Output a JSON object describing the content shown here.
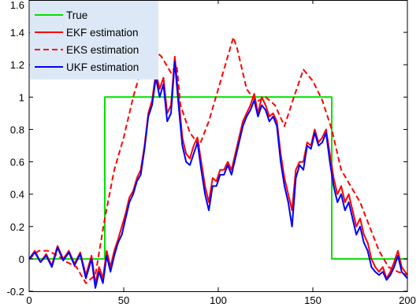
{
  "chart_data": {
    "type": "line",
    "title": "",
    "xlabel": "",
    "ylabel": "",
    "xlim": [
      0,
      200
    ],
    "ylim": [
      -0.2,
      1.6
    ],
    "x_ticks": [
      0,
      50,
      100,
      150,
      200
    ],
    "x_tick_labels": [
      "0",
      "50",
      "100",
      "150",
      "200"
    ],
    "y_ticks": [
      -0.2,
      0,
      0.2,
      0.4,
      0.6,
      0.8,
      1,
      1.2,
      1.4,
      1.6
    ],
    "y_tick_labels": [
      "-0.2",
      "0",
      "0.2",
      "0.4",
      "0.6",
      "0.8",
      "1",
      "1.2",
      "1.4",
      "1.6"
    ],
    "grid": false,
    "legend_position": "top-left",
    "series": [
      {
        "name": "True",
        "color": "#00e000",
        "style": "solid",
        "x": [
          0,
          40,
          40,
          160,
          160,
          200
        ],
        "y": [
          0,
          0,
          1,
          1,
          0,
          0
        ]
      },
      {
        "name": "EKF estimation",
        "color": "#ff0000",
        "style": "solid",
        "x": [
          0,
          3,
          6,
          9,
          12,
          15,
          18,
          21,
          24,
          27,
          30,
          33,
          35,
          37,
          39,
          41,
          43,
          45,
          47,
          49,
          51,
          53,
          55,
          57,
          59,
          61,
          63,
          65,
          67,
          69,
          71,
          73,
          75,
          77,
          79,
          81,
          83,
          85,
          87,
          89,
          91,
          93,
          95,
          97,
          99,
          101,
          103,
          105,
          107,
          109,
          111,
          113,
          115,
          117,
          119,
          121,
          123,
          125,
          127,
          129,
          131,
          133,
          135,
          137,
          139,
          141,
          143,
          145,
          147,
          149,
          151,
          153,
          155,
          157,
          159,
          161,
          163,
          165,
          167,
          169,
          171,
          173,
          175,
          177,
          179,
          181,
          183,
          185,
          187,
          189,
          191,
          193,
          195,
          197,
          200
        ],
        "y": [
          0.0,
          0.05,
          -0.02,
          0.03,
          -0.04,
          0.08,
          0.0,
          0.05,
          -0.03,
          0.04,
          -0.1,
          0.02,
          -0.15,
          -0.05,
          -0.12,
          0.05,
          -0.05,
          0.05,
          0.12,
          0.2,
          0.28,
          0.38,
          0.42,
          0.5,
          0.55,
          0.7,
          0.9,
          0.98,
          1.15,
          1.05,
          1.12,
          0.9,
          0.95,
          1.25,
          1.0,
          0.75,
          0.65,
          0.62,
          0.7,
          0.75,
          0.6,
          0.45,
          0.35,
          0.5,
          0.48,
          0.55,
          0.55,
          0.6,
          0.55,
          0.65,
          0.75,
          0.85,
          0.9,
          0.95,
          1.02,
          0.9,
          1.0,
          0.95,
          0.88,
          0.9,
          0.85,
          0.65,
          0.5,
          0.4,
          0.3,
          0.55,
          0.6,
          0.6,
          0.72,
          0.7,
          0.8,
          0.72,
          0.75,
          0.8,
          0.65,
          0.5,
          0.4,
          0.45,
          0.35,
          0.4,
          0.3,
          0.2,
          0.25,
          0.15,
          0.1,
          0.0,
          -0.05,
          -0.08,
          -0.05,
          -0.12,
          -0.08,
          -0.02,
          0.05,
          -0.05,
          -0.1
        ]
      },
      {
        "name": "EKS estimation",
        "color": "#ff0000",
        "style": "dashed",
        "x": [
          0,
          5,
          10,
          15,
          20,
          25,
          30,
          35,
          40,
          45,
          50,
          55,
          60,
          65,
          70,
          75,
          78,
          80,
          85,
          90,
          95,
          100,
          105,
          108,
          110,
          115,
          120,
          125,
          130,
          135,
          140,
          145,
          150,
          155,
          160,
          165,
          170,
          175,
          180,
          185,
          190,
          195,
          200
        ],
        "y": [
          0.0,
          0.05,
          0.05,
          0.02,
          -0.02,
          -0.05,
          -0.15,
          -0.1,
          0.25,
          0.55,
          0.75,
          1.0,
          1.2,
          1.3,
          1.25,
          1.15,
          1.2,
          0.95,
          0.78,
          0.7,
          0.85,
          1.05,
          1.25,
          1.37,
          1.3,
          1.05,
          0.97,
          1.0,
          0.95,
          0.82,
          1.0,
          1.17,
          1.1,
          0.98,
          0.8,
          0.55,
          0.45,
          0.35,
          0.2,
          0.05,
          -0.05,
          -0.08,
          -0.1
        ]
      },
      {
        "name": "UKF estimation",
        "color": "#0000ff",
        "style": "solid",
        "x": [
          0,
          3,
          6,
          9,
          12,
          15,
          18,
          21,
          24,
          27,
          30,
          33,
          35,
          37,
          39,
          41,
          43,
          45,
          47,
          49,
          51,
          53,
          55,
          57,
          59,
          61,
          63,
          65,
          67,
          69,
          71,
          73,
          75,
          77,
          79,
          81,
          83,
          85,
          87,
          89,
          91,
          93,
          95,
          97,
          99,
          101,
          103,
          105,
          107,
          109,
          111,
          113,
          115,
          117,
          119,
          121,
          123,
          125,
          127,
          129,
          131,
          133,
          135,
          137,
          139,
          141,
          143,
          145,
          147,
          149,
          151,
          153,
          155,
          157,
          159,
          161,
          163,
          165,
          167,
          169,
          171,
          173,
          175,
          177,
          179,
          181,
          183,
          185,
          187,
          189,
          191,
          193,
          195,
          197,
          200
        ],
        "y": [
          0.0,
          0.04,
          -0.02,
          0.02,
          -0.05,
          0.07,
          -0.01,
          0.04,
          -0.04,
          0.03,
          -0.12,
          0.0,
          -0.18,
          -0.08,
          -0.15,
          0.02,
          -0.08,
          0.02,
          0.1,
          0.15,
          0.25,
          0.35,
          0.4,
          0.48,
          0.52,
          0.68,
          0.88,
          0.95,
          1.12,
          1.0,
          1.08,
          0.85,
          0.9,
          1.22,
          0.95,
          0.7,
          0.6,
          0.58,
          0.65,
          0.72,
          0.55,
          0.4,
          0.3,
          0.45,
          0.45,
          0.52,
          0.52,
          0.58,
          0.52,
          0.62,
          0.72,
          0.82,
          0.88,
          0.92,
          0.98,
          0.88,
          0.95,
          0.92,
          0.85,
          0.88,
          0.82,
          0.6,
          0.45,
          0.35,
          0.2,
          0.5,
          0.58,
          0.55,
          0.7,
          0.68,
          0.78,
          0.7,
          0.72,
          0.78,
          0.6,
          0.45,
          0.35,
          0.4,
          0.3,
          0.35,
          0.25,
          0.15,
          0.2,
          0.1,
          0.05,
          -0.05,
          -0.08,
          -0.1,
          -0.08,
          -0.13,
          -0.1,
          -0.05,
          0.02,
          -0.08,
          -0.12
        ]
      }
    ]
  }
}
